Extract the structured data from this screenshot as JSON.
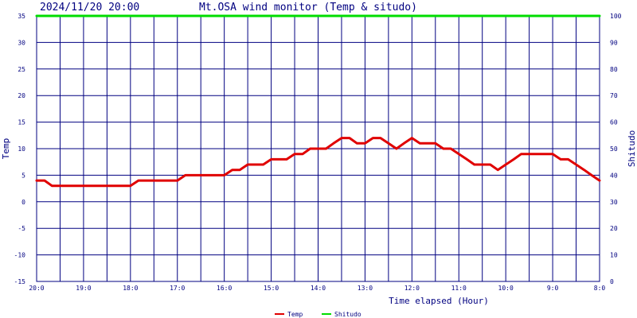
{
  "header": {
    "timestamp": "2024/11/20 20:00",
    "title": "Mt.OSA wind monitor (Temp & situdo)"
  },
  "colors": {
    "grid": "#000080",
    "temp": "#e00000",
    "shitudo": "#00dd00",
    "axis_text": "#000080",
    "title_text": "#000080",
    "background": "#ffffff"
  },
  "chart_data": {
    "type": "line",
    "title": "Mt.OSA wind monitor (Temp & situdo)",
    "xlabel": "Time elapsed (Hour)",
    "ylabel_left": "Temp",
    "ylabel_right": "Shitudo",
    "x_ticks": [
      "20:0",
      "19:0",
      "18:0",
      "17:0",
      "16:0",
      "15:0",
      "14:0",
      "13:0",
      "12:0",
      "11:0",
      "10:0",
      "9:0",
      "8:0"
    ],
    "xlim": [
      0,
      12
    ],
    "y_left": {
      "min": -15,
      "max": 35,
      "ticks": [
        -15,
        -10,
        -5,
        0,
        5,
        10,
        15,
        20,
        25,
        30,
        35
      ]
    },
    "y_right": {
      "min": 0,
      "max": 100,
      "ticks": [
        0,
        10,
        20,
        30,
        40,
        50,
        60,
        70,
        80,
        90,
        100
      ]
    },
    "grid": true,
    "legend_position": "bottom-center",
    "series": [
      {
        "name": "Temp",
        "axis": "left",
        "color": "#e00000",
        "x": [
          0,
          0.17,
          0.33,
          0.5,
          1,
          1.5,
          2,
          2.17,
          2.33,
          2.5,
          3,
          3.17,
          3.33,
          3.5,
          4,
          4.17,
          4.33,
          4.5,
          4.67,
          4.83,
          5,
          5.17,
          5.33,
          5.5,
          5.67,
          5.83,
          6,
          6.17,
          6.33,
          6.5,
          6.67,
          6.83,
          7,
          7.17,
          7.33,
          7.5,
          7.67,
          7.83,
          8,
          8.17,
          8.33,
          8.5,
          8.67,
          8.83,
          9,
          9.17,
          9.33,
          9.5,
          9.67,
          9.83,
          10,
          10.17,
          10.33,
          10.5,
          10.67,
          10.83,
          11,
          11.17,
          11.33,
          11.5,
          11.67,
          11.83,
          12
        ],
        "values": [
          4,
          4,
          3,
          3,
          3,
          3,
          3,
          4,
          4,
          4,
          4,
          5,
          5,
          5,
          5,
          6,
          6,
          7,
          7,
          7,
          8,
          8,
          8,
          9,
          9,
          10,
          10,
          10,
          11,
          12,
          12,
          11,
          11,
          12,
          12,
          11,
          10,
          11,
          12,
          11,
          11,
          11,
          10,
          10,
          9,
          8,
          7,
          7,
          7,
          6,
          7,
          8,
          9,
          9,
          9,
          9,
          9,
          8,
          8,
          7,
          6,
          5,
          4
        ]
      },
      {
        "name": "Shitudo",
        "axis": "right",
        "color": "#00dd00",
        "x": [
          0,
          12
        ],
        "values": [
          100,
          100
        ]
      }
    ]
  },
  "legend": {
    "temp_label": "Temp",
    "shitudo_label": "Shitudo"
  }
}
